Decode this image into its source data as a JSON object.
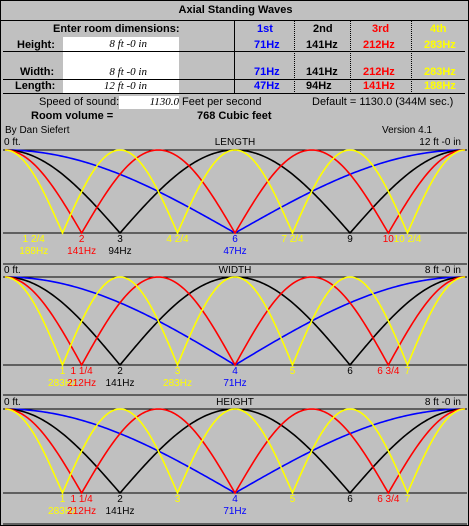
{
  "title": "Axial Standing Waves",
  "inputs_header": "Enter room dimensions:",
  "columns": [
    {
      "label": "1st",
      "color": "#0000ff"
    },
    {
      "label": "2nd",
      "color": "#000000"
    },
    {
      "label": "3rd",
      "color": "#ff0000"
    },
    {
      "label": "4th",
      "color": "#ffff00"
    }
  ],
  "rows": [
    {
      "label": "Height:",
      "value": "8 ft  -0 in",
      "freqs": [
        "71Hz",
        "141Hz",
        "212Hz",
        "283Hz"
      ]
    },
    {
      "label": "Width:",
      "value": "8 ft  -0 in",
      "freqs": [
        "71Hz",
        "141Hz",
        "212Hz",
        "283Hz"
      ]
    },
    {
      "label": "Length:",
      "value": "12 ft  -0 in",
      "freqs": [
        "47Hz",
        "94Hz",
        "141Hz",
        "188Hz"
      ]
    }
  ],
  "speed": {
    "label": "Speed of sound:",
    "value": "1130.0",
    "unit": "Feet per second",
    "default": "Default = 1130.0 (344M sec.)"
  },
  "volume": {
    "label": "Room volume =",
    "value": "768 Cubic feet"
  },
  "author": "By Dan Siefert",
  "version": "Version 4.1",
  "charts": [
    {
      "name": "LENGTH",
      "start": "0 ft.",
      "end": "12 ft -0 in",
      "markers": [
        {
          "row1": "1 2/4",
          "row2": "188Hz",
          "color": "#ffff00"
        },
        {
          "row1": "2",
          "row2": "141Hz",
          "color": "#ff0000"
        },
        {
          "row1": "3",
          "row2": "94Hz",
          "color": "#000000"
        },
        {
          "row1": "4 2/4",
          "row2": "",
          "color": "#ffff00"
        },
        {
          "row1": "6",
          "row2": "47Hz",
          "color": "#0000ff"
        },
        {
          "row1": "7 2/4",
          "row2": "",
          "color": "#ffff00"
        },
        {
          "row1": "9",
          "row2": "",
          "color": "#000000"
        },
        {
          "row1": "10",
          "row2": "",
          "color": "#ff0000"
        },
        {
          "row1": "10 2/4",
          "row2": "",
          "color": "#ffff00"
        }
      ]
    },
    {
      "name": "WIDTH",
      "start": "0 ft.",
      "end": "8 ft -0 in",
      "markers": [
        {
          "row1": "1",
          "row2": "283Hz",
          "color": "#ffff00"
        },
        {
          "row1": "1 1/4",
          "row2": "212Hz",
          "color": "#ff0000"
        },
        {
          "row1": "2",
          "row2": "141Hz",
          "color": "#000000"
        },
        {
          "row1": "3",
          "row2": "283Hz",
          "color": "#ffff00"
        },
        {
          "row1": "4",
          "row2": "71Hz",
          "color": "#0000ff"
        },
        {
          "row1": "5",
          "row2": "",
          "color": "#ffff00"
        },
        {
          "row1": "6",
          "row2": "",
          "color": "#000000"
        },
        {
          "row1": "6 3/4",
          "row2": "",
          "color": "#ff0000"
        },
        {
          "row1": "7",
          "row2": "",
          "color": "#ffff00"
        }
      ]
    },
    {
      "name": "HEIGHT",
      "start": "0 ft.",
      "end": "8 ft -0 in",
      "markers": [
        {
          "row1": "1",
          "row2": "283Hz",
          "color": "#ffff00"
        },
        {
          "row1": "1 1/4",
          "row2": "212Hz",
          "color": "#ff0000"
        },
        {
          "row1": "2",
          "row2": "141Hz",
          "color": "#000000"
        },
        {
          "row1": "3",
          "row2": "",
          "color": "#ffff00"
        },
        {
          "row1": "4",
          "row2": "71Hz",
          "color": "#0000ff"
        },
        {
          "row1": "5",
          "row2": "",
          "color": "#ffff00"
        },
        {
          "row1": "6",
          "row2": "",
          "color": "#000000"
        },
        {
          "row1": "6 3/4",
          "row2": "",
          "color": "#ff0000"
        },
        {
          "row1": "7",
          "row2": "",
          "color": "#ffff00"
        }
      ]
    }
  ]
}
